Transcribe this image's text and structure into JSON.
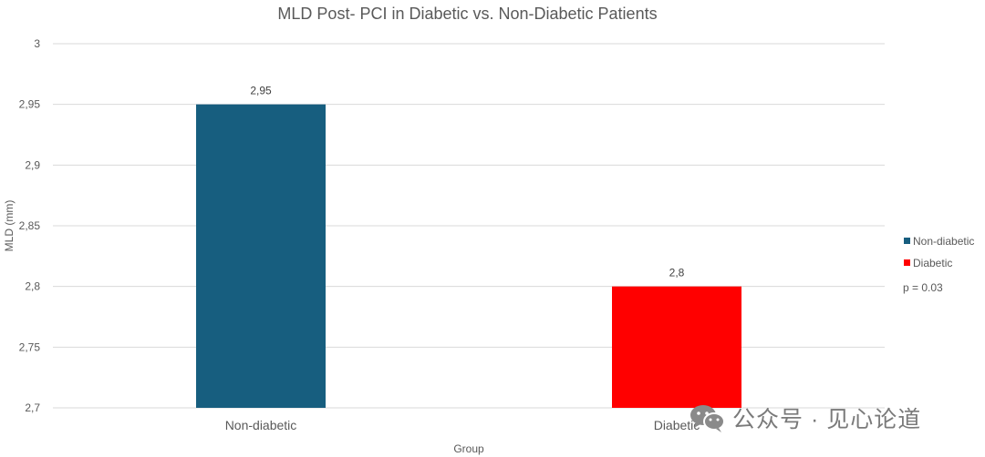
{
  "chart_data": {
    "type": "bar",
    "title": "MLD Post- PCI in Diabetic vs. Non-Diabetic Patients",
    "xlabel": "Group",
    "ylabel": "MLD (mm)",
    "ylim": [
      2.7,
      3
    ],
    "yticks": [
      "3",
      "2,95",
      "2,9",
      "2,85",
      "2,8",
      "2,75",
      "2,7"
    ],
    "categories": [
      "Non-diabetic",
      "Diabetic"
    ],
    "values": [
      2.95,
      2.8
    ],
    "data_labels": [
      "2,95",
      "2,8"
    ],
    "colors": [
      "#175e7f",
      "#ff0000"
    ],
    "grid": true,
    "legend": {
      "placement": "right",
      "items": [
        {
          "label": "Non-diabetic",
          "color": "#175e7f"
        },
        {
          "label": "Diabetic",
          "color": "#ff0000"
        }
      ]
    },
    "annotation": "p = 0.03"
  },
  "watermark": {
    "text": "公众号 · 见心论道",
    "icon": "wechat-icon"
  }
}
